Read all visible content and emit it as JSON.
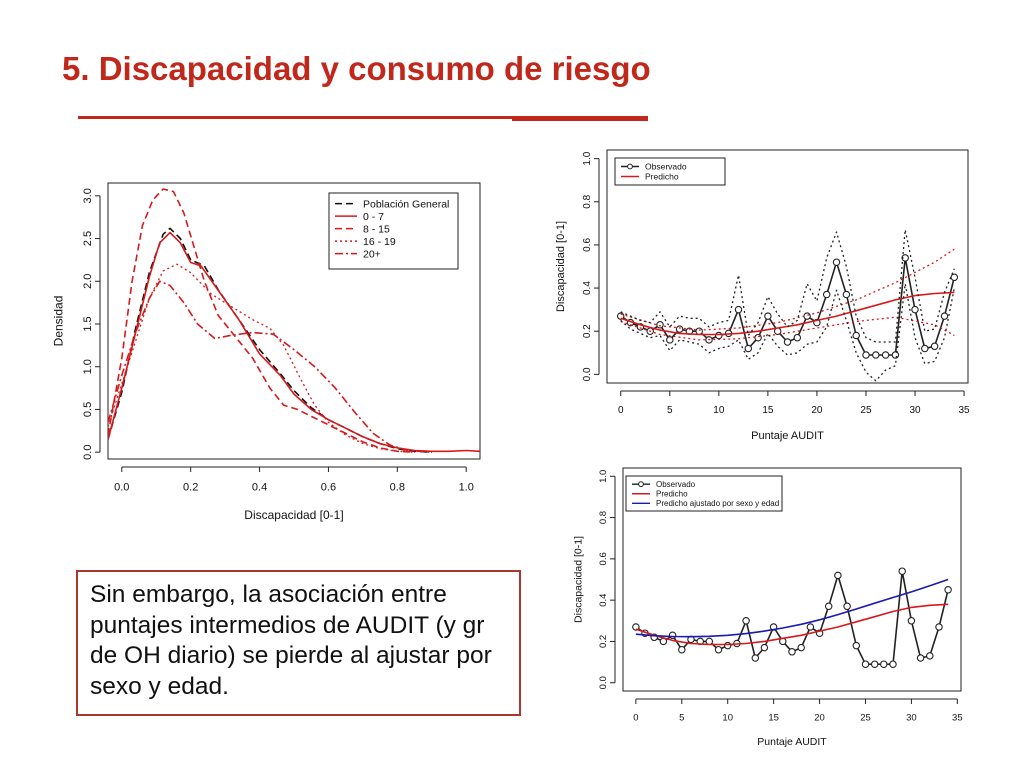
{
  "slide": {
    "title": "5. Discapacidad y consumo de riesgo",
    "callout": "Sin embargo, la asociación entre puntajes intermedios de AUDIT (y gr de OH diario) se pierde al ajustar por sexo y edad."
  },
  "colors": {
    "accent": "#c0281c",
    "predicho": "#d7191c",
    "ajustado": "#1a1ab0",
    "observado": "#222222"
  },
  "chart_data": [
    {
      "type": "line",
      "xlabel": "Discapacidad [0-1]",
      "ylabel": "Densidad",
      "xlim": [
        -0.04,
        1.04
      ],
      "ylim": [
        -0.08,
        3.15
      ],
      "xticks": [
        "0.0",
        "0.2",
        "0.4",
        "0.6",
        "0.8",
        "1.0"
      ],
      "yticks": [
        "0.0",
        "0.5",
        "1.0",
        "1.5",
        "2.0",
        "2.5",
        "3.0"
      ],
      "legend_position": "top-right",
      "series": [
        {
          "name": "Población General",
          "color": "#111111",
          "style": "dashed",
          "points": [
            [
              -0.04,
              0.15
            ],
            [
              0,
              0.7
            ],
            [
              0.04,
              1.45
            ],
            [
              0.08,
              2.1
            ],
            [
              0.12,
              2.55
            ],
            [
              0.14,
              2.62
            ],
            [
              0.17,
              2.5
            ],
            [
              0.2,
              2.25
            ],
            [
              0.24,
              2.18
            ],
            [
              0.28,
              1.9
            ],
            [
              0.34,
              1.55
            ],
            [
              0.4,
              1.2
            ],
            [
              0.46,
              0.92
            ],
            [
              0.5,
              0.72
            ],
            [
              0.55,
              0.52
            ],
            [
              0.6,
              0.38
            ],
            [
              0.65,
              0.28
            ],
            [
              0.7,
              0.18
            ],
            [
              0.75,
              0.1
            ],
            [
              0.8,
              0.04
            ],
            [
              0.85,
              0.01
            ],
            [
              0.9,
              0
            ]
          ]
        },
        {
          "name": "0 - 7",
          "color": "#d7191c",
          "style": "solid",
          "points": [
            [
              -0.04,
              0.15
            ],
            [
              0,
              0.75
            ],
            [
              0.04,
              1.4
            ],
            [
              0.08,
              2.05
            ],
            [
              0.11,
              2.45
            ],
            [
              0.14,
              2.57
            ],
            [
              0.17,
              2.45
            ],
            [
              0.2,
              2.22
            ],
            [
              0.23,
              2.18
            ],
            [
              0.27,
              1.95
            ],
            [
              0.34,
              1.55
            ],
            [
              0.4,
              1.15
            ],
            [
              0.46,
              0.9
            ],
            [
              0.5,
              0.68
            ],
            [
              0.55,
              0.5
            ],
            [
              0.6,
              0.38
            ],
            [
              0.65,
              0.28
            ],
            [
              0.7,
              0.18
            ],
            [
              0.75,
              0.1
            ],
            [
              0.8,
              0.05
            ],
            [
              0.85,
              0.02
            ],
            [
              0.9,
              0.01
            ],
            [
              0.95,
              0.01
            ],
            [
              1.0,
              0.02
            ],
            [
              1.04,
              0.01
            ]
          ]
        },
        {
          "name": "8 - 15",
          "color": "#d7191c",
          "style": "dashed",
          "points": [
            [
              -0.04,
              0.2
            ],
            [
              0,
              1.1
            ],
            [
              0.03,
              2.0
            ],
            [
              0.06,
              2.65
            ],
            [
              0.09,
              2.95
            ],
            [
              0.12,
              3.08
            ],
            [
              0.15,
              3.05
            ],
            [
              0.18,
              2.8
            ],
            [
              0.21,
              2.4
            ],
            [
              0.24,
              2.0
            ],
            [
              0.28,
              1.6
            ],
            [
              0.33,
              1.35
            ],
            [
              0.38,
              1.1
            ],
            [
              0.43,
              0.75
            ],
            [
              0.47,
              0.55
            ],
            [
              0.51,
              0.5
            ],
            [
              0.55,
              0.42
            ],
            [
              0.6,
              0.32
            ],
            [
              0.65,
              0.22
            ],
            [
              0.7,
              0.12
            ],
            [
              0.75,
              0.05
            ],
            [
              0.8,
              0.01
            ],
            [
              0.85,
              0
            ]
          ]
        },
        {
          "name": "16 - 19",
          "color": "#d7191c",
          "style": "dotted",
          "points": [
            [
              -0.04,
              0.3
            ],
            [
              0,
              0.8
            ],
            [
              0.04,
              1.3
            ],
            [
              0.08,
              1.8
            ],
            [
              0.12,
              2.12
            ],
            [
              0.16,
              2.2
            ],
            [
              0.2,
              2.1
            ],
            [
              0.26,
              1.85
            ],
            [
              0.32,
              1.7
            ],
            [
              0.38,
              1.55
            ],
            [
              0.43,
              1.45
            ],
            [
              0.47,
              1.25
            ],
            [
              0.52,
              0.85
            ],
            [
              0.56,
              0.55
            ],
            [
              0.6,
              0.35
            ],
            [
              0.65,
              0.2
            ],
            [
              0.7,
              0.1
            ],
            [
              0.75,
              0.04
            ],
            [
              0.8,
              0.01
            ],
            [
              0.85,
              0
            ]
          ]
        },
        {
          "name": "20+",
          "color": "#d7191c",
          "style": "dashdot",
          "points": [
            [
              -0.04,
              0.35
            ],
            [
              0,
              0.9
            ],
            [
              0.04,
              1.4
            ],
            [
              0.08,
              1.8
            ],
            [
              0.11,
              2.0
            ],
            [
              0.14,
              1.95
            ],
            [
              0.18,
              1.75
            ],
            [
              0.22,
              1.5
            ],
            [
              0.27,
              1.33
            ],
            [
              0.32,
              1.37
            ],
            [
              0.38,
              1.4
            ],
            [
              0.44,
              1.38
            ],
            [
              0.5,
              1.2
            ],
            [
              0.56,
              1.0
            ],
            [
              0.62,
              0.75
            ],
            [
              0.68,
              0.45
            ],
            [
              0.73,
              0.22
            ],
            [
              0.78,
              0.08
            ],
            [
              0.83,
              0.02
            ],
            [
              0.9,
              0
            ]
          ]
        }
      ]
    },
    {
      "type": "line",
      "xlabel": "Puntaje AUDIT",
      "ylabel": "Discapacidad [0-1]",
      "xlim": [
        -1.4,
        35.4
      ],
      "ylim": [
        -0.04,
        1.04
      ],
      "xticks": [
        "0",
        "5",
        "10",
        "15",
        "20",
        "25",
        "30",
        "35"
      ],
      "yticks": [
        "0.0",
        "0.2",
        "0.4",
        "0.6",
        "0.8",
        "1.0"
      ],
      "legend_position": "top-left",
      "series": [
        {
          "name": "Observado",
          "color": "#222222",
          "style": "solid-points",
          "x": [
            0,
            1,
            2,
            3,
            4,
            5,
            6,
            7,
            8,
            9,
            10,
            11,
            12,
            13,
            14,
            15,
            16,
            17,
            18,
            19,
            20,
            21,
            22,
            23,
            24,
            25,
            26,
            27,
            28,
            29,
            30,
            31,
            32,
            33,
            34
          ],
          "y": [
            0.27,
            0.24,
            0.22,
            0.2,
            0.23,
            0.16,
            0.21,
            0.2,
            0.2,
            0.16,
            0.18,
            0.19,
            0.3,
            0.12,
            0.17,
            0.27,
            0.2,
            0.15,
            0.17,
            0.27,
            0.24,
            0.37,
            0.52,
            0.37,
            0.18,
            0.09,
            0.09,
            0.09,
            0.09,
            0.54,
            0.3,
            0.12,
            0.13,
            0.27,
            0.45
          ]
        },
        {
          "name": "Predicho",
          "color": "#d7191c",
          "style": "solid",
          "x": [
            0,
            2,
            4,
            6,
            8,
            10,
            12,
            14,
            16,
            18,
            20,
            22,
            24,
            26,
            28,
            30,
            32,
            34
          ],
          "y": [
            0.26,
            0.23,
            0.205,
            0.19,
            0.185,
            0.185,
            0.19,
            0.2,
            0.215,
            0.23,
            0.25,
            0.27,
            0.295,
            0.32,
            0.345,
            0.365,
            0.375,
            0.38
          ]
        },
        {
          "name": "",
          "color": "#d7191c",
          "style": "dotted",
          "x": [
            0,
            4,
            8,
            12,
            16,
            20,
            24,
            28,
            32,
            34
          ],
          "y": [
            0.28,
            0.225,
            0.205,
            0.215,
            0.24,
            0.285,
            0.345,
            0.425,
            0.52,
            0.58
          ]
        },
        {
          "name": "",
          "color": "#d7191c",
          "style": "dotted",
          "x": [
            0,
            4,
            8,
            12,
            16,
            20,
            24,
            28,
            32,
            34
          ],
          "y": [
            0.245,
            0.185,
            0.16,
            0.165,
            0.185,
            0.215,
            0.245,
            0.265,
            0.23,
            0.18
          ]
        },
        {
          "name": "",
          "color": "#222222",
          "style": "dotted",
          "x": [
            0,
            1,
            2,
            3,
            4,
            5,
            6,
            7,
            8,
            9,
            10,
            11,
            12,
            13,
            14,
            15,
            16,
            17,
            18,
            19,
            20,
            21,
            22,
            23,
            24,
            25,
            26,
            27,
            28,
            29,
            30,
            31,
            32,
            33,
            34
          ],
          "y": [
            0.29,
            0.27,
            0.25,
            0.24,
            0.29,
            0.22,
            0.27,
            0.26,
            0.26,
            0.22,
            0.24,
            0.25,
            0.46,
            0.18,
            0.24,
            0.36,
            0.28,
            0.22,
            0.25,
            0.42,
            0.34,
            0.54,
            0.66,
            0.5,
            0.27,
            0.17,
            0.15,
            0.15,
            0.15,
            0.67,
            0.45,
            0.2,
            0.21,
            0.38,
            0.49
          ]
        },
        {
          "name": "",
          "color": "#222222",
          "style": "dotted",
          "x": [
            0,
            1,
            2,
            3,
            4,
            5,
            6,
            7,
            8,
            9,
            10,
            11,
            12,
            13,
            14,
            15,
            16,
            17,
            18,
            19,
            20,
            21,
            22,
            23,
            24,
            25,
            26,
            27,
            28,
            29,
            30,
            31,
            32,
            33,
            34
          ],
          "y": [
            0.25,
            0.21,
            0.19,
            0.17,
            0.18,
            0.11,
            0.16,
            0.15,
            0.14,
            0.1,
            0.12,
            0.13,
            0.16,
            0.07,
            0.1,
            0.19,
            0.13,
            0.09,
            0.1,
            0.14,
            0.15,
            0.22,
            0.39,
            0.25,
            0.1,
            0.01,
            -0.03,
            0.02,
            0.04,
            0.42,
            0.17,
            0.05,
            0.06,
            0.17,
            0.4
          ]
        }
      ]
    },
    {
      "type": "line",
      "xlabel": "Puntaje AUDIT",
      "ylabel": "Discapacidad [0-1]",
      "xlim": [
        -1.4,
        35.4
      ],
      "ylim": [
        -0.04,
        1.04
      ],
      "xticks": [
        "0",
        "5",
        "10",
        "15",
        "20",
        "25",
        "30",
        "35"
      ],
      "yticks": [
        "0.0",
        "0.2",
        "0.4",
        "0.6",
        "0.8",
        "1.0"
      ],
      "legend_position": "top-left",
      "series": [
        {
          "name": "Observado",
          "color": "#222222",
          "style": "solid-points",
          "x": [
            0,
            1,
            2,
            3,
            4,
            5,
            6,
            7,
            8,
            9,
            10,
            11,
            12,
            13,
            14,
            15,
            16,
            17,
            18,
            19,
            20,
            21,
            22,
            23,
            24,
            25,
            26,
            27,
            28,
            29,
            30,
            31,
            32,
            33,
            34
          ],
          "y": [
            0.27,
            0.24,
            0.22,
            0.2,
            0.23,
            0.16,
            0.21,
            0.2,
            0.2,
            0.16,
            0.18,
            0.19,
            0.3,
            0.12,
            0.17,
            0.27,
            0.2,
            0.15,
            0.17,
            0.27,
            0.24,
            0.37,
            0.52,
            0.37,
            0.18,
            0.09,
            0.09,
            0.09,
            0.09,
            0.54,
            0.3,
            0.12,
            0.13,
            0.27,
            0.45
          ]
        },
        {
          "name": "Predicho",
          "color": "#d7191c",
          "style": "solid",
          "x": [
            0,
            2,
            4,
            6,
            8,
            10,
            12,
            14,
            16,
            18,
            20,
            22,
            24,
            26,
            28,
            30,
            32,
            34
          ],
          "y": [
            0.26,
            0.23,
            0.205,
            0.19,
            0.185,
            0.185,
            0.19,
            0.2,
            0.215,
            0.23,
            0.25,
            0.27,
            0.295,
            0.32,
            0.345,
            0.365,
            0.375,
            0.38
          ]
        },
        {
          "name": "Predicho ajustado por sexo y edad",
          "color": "#1a1ab0",
          "style": "solid",
          "x": [
            0,
            2,
            4,
            6,
            8,
            10,
            12,
            14,
            16,
            18,
            20,
            22,
            24,
            26,
            28,
            30,
            32,
            34
          ],
          "y": [
            0.235,
            0.228,
            0.224,
            0.223,
            0.225,
            0.23,
            0.238,
            0.25,
            0.265,
            0.283,
            0.305,
            0.33,
            0.357,
            0.385,
            0.413,
            0.44,
            0.47,
            0.5
          ]
        }
      ]
    }
  ]
}
